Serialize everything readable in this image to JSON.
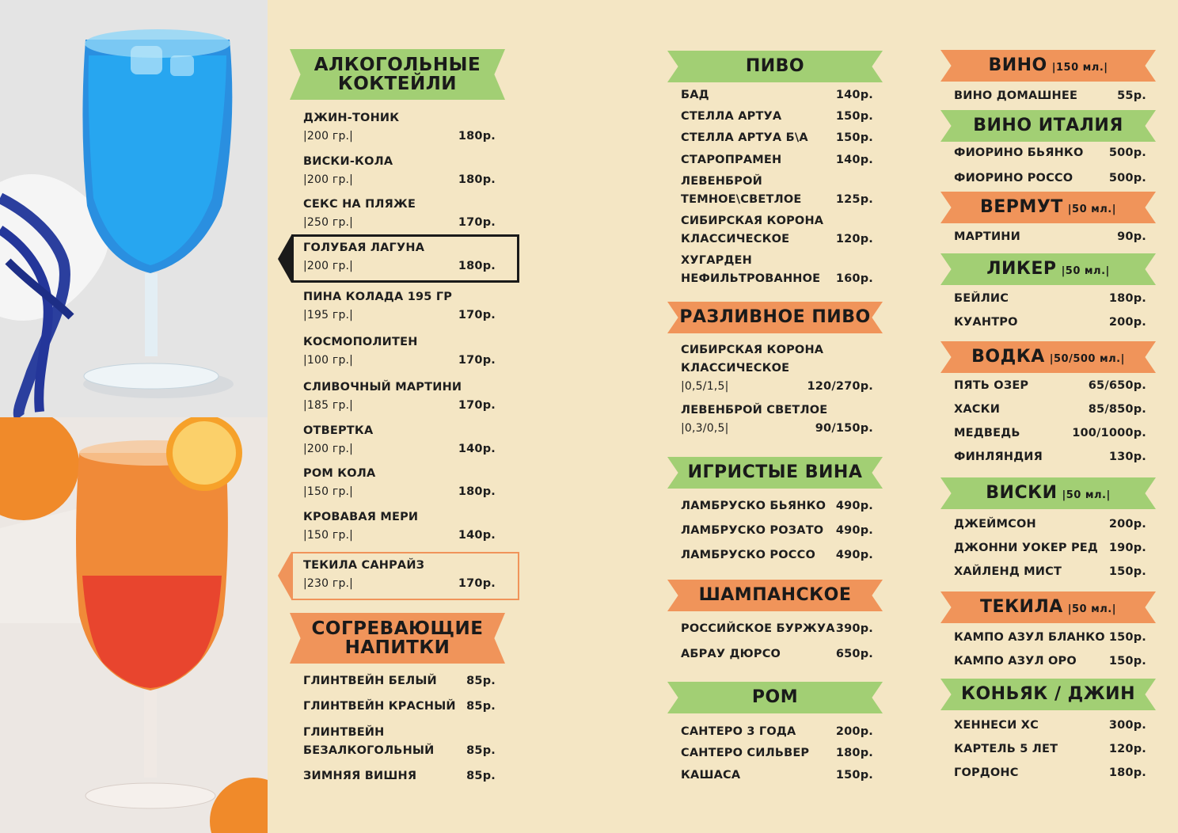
{
  "images": {
    "top": "blue-lagoon-cocktail-photo",
    "bottom": "tequila-sunrise-cocktail-photo"
  },
  "colors": {
    "background": "#f4e6c4",
    "green_banner": "#a2cf74",
    "orange_banner": "#f0945a",
    "highlight_dark": "#1a1a1a"
  },
  "col1": {
    "cocktails": {
      "title_line1": "АЛКОГОЛЬНЫЕ",
      "title_line2": "КОКТЕЙЛИ",
      "items": [
        {
          "name": "ДЖИН-ТОНИК",
          "volume": "|200 гр.|",
          "price": "180р."
        },
        {
          "name": "ВИСКИ-КОЛА",
          "volume": "|200 гр.|",
          "price": "180р."
        },
        {
          "name": "СЕКС НА ПЛЯЖЕ",
          "volume": "|250 гр.|",
          "price": "170р."
        },
        {
          "name": "ГОЛУБАЯ ЛАГУНА",
          "volume": "|200 гр.|",
          "price": "180р."
        },
        {
          "name": "ПИНА КОЛАДА 195 ГР",
          "volume": "|195 гр.|",
          "price": "170р."
        },
        {
          "name": "КОСМОПОЛИТЕН",
          "volume": "|100 гр.|",
          "price": "170р."
        },
        {
          "name": "СЛИВОЧНЫЙ МАРТИНИ",
          "volume": "|185 гр.|",
          "price": "170р."
        },
        {
          "name": "ОТВЕРТКА",
          "volume": "|200 гр.|",
          "price": "140р."
        },
        {
          "name": "РОМ КОЛА",
          "volume": "|150 гр.|",
          "price": "180р."
        },
        {
          "name": "КРОВАВАЯ МЕРИ",
          "volume": "|150 гр.|",
          "price": "140р."
        },
        {
          "name": "ТЕКИЛА САНРАЙЗ",
          "volume": "|230 гр.|",
          "price": "170р."
        }
      ]
    },
    "warm": {
      "title_line1": "СОГРЕВАЮЩИЕ",
      "title_line2": "НАПИТКИ",
      "items": [
        {
          "name": "ГЛИНТВЕЙН БЕЛЫЙ",
          "price": "85р."
        },
        {
          "name": "ГЛИНТВЕЙН КРАСНЫЙ",
          "price": "85р."
        },
        {
          "name": "ГЛИНТВЕЙН",
          "name2": "БЕЗАЛКОГОЛЬНЫЙ",
          "price": "85р."
        },
        {
          "name": "ЗИМНЯЯ ВИШНЯ",
          "price": "85р."
        }
      ]
    }
  },
  "col2": {
    "beer": {
      "title": "ПИВО",
      "items": [
        {
          "name": "БАД",
          "price": "140р."
        },
        {
          "name": "СТЕЛЛА АРТУА",
          "price": "150р."
        },
        {
          "name": "СТЕЛЛА АРТУА Б\\А",
          "price": "150р."
        },
        {
          "name": "СТАРОПРАМЕН",
          "price": "140р."
        },
        {
          "name": "ЛЕВЕНБРОЙ",
          "name2": "ТЕМНОЕ\\СВЕТЛОЕ",
          "price": "125р."
        },
        {
          "name": "СИБИРСКАЯ КОРОНА",
          "name2": "КЛАССИЧЕСКОЕ",
          "price": "120р."
        },
        {
          "name": "ХУГАРДЕН",
          "name2": "НЕФИЛЬТРОВАННОЕ",
          "price": "160р."
        }
      ]
    },
    "draft": {
      "title": "РАЗЛИВНОЕ ПИВО",
      "items": [
        {
          "name": "СИБИРСКАЯ КОРОНА",
          "name2": "КЛАССИЧЕСКОЕ",
          "volume": "|0,5/1,5|",
          "price": "120/270р."
        },
        {
          "name": "ЛЕВЕНБРОЙ СВЕТЛОЕ",
          "volume": "|0,3/0,5|",
          "price": "90/150р."
        }
      ]
    },
    "sparkling": {
      "title": "ИГРИСТЫЕ ВИНА",
      "items": [
        {
          "name": "ЛАМБРУСКО БЬЯНКО",
          "price": "490р."
        },
        {
          "name": "ЛАМБРУСКО РОЗАТО",
          "price": "490р."
        },
        {
          "name": "ЛАМБРУСКО РОССО",
          "price": "490р."
        }
      ]
    },
    "champagne": {
      "title": "ШАМПАНСКОЕ",
      "items": [
        {
          "name": "РОССИЙСКОЕ БУРЖУА",
          "price": "390р."
        },
        {
          "name": "АБРАУ ДЮРСО",
          "price": "650р."
        }
      ]
    },
    "rum": {
      "title": "РОМ",
      "items": [
        {
          "name": "САНТЕРО 3 ГОДА",
          "price": "200р."
        },
        {
          "name": "САНТЕРО СИЛЬВЕР",
          "price": "180р."
        },
        {
          "name": "КАШАСА",
          "price": "150р."
        }
      ]
    }
  },
  "col3": {
    "wine": {
      "title": "ВИНО",
      "unit": "|150 мл.|",
      "items": [
        {
          "name": "ВИНО ДОМАШНЕЕ",
          "price": "55р."
        }
      ]
    },
    "wine_italy": {
      "title": "ВИНО ИТАЛИЯ",
      "items": [
        {
          "name": "ФИОРИНО БЬЯНКО",
          "price": "500р."
        },
        {
          "name": "ФИОРИНО РОССО",
          "price": "500р."
        }
      ]
    },
    "vermouth": {
      "title": "ВЕРМУТ",
      "unit": "|50 мл.|",
      "items": [
        {
          "name": "МАРТИНИ",
          "price": "90р."
        }
      ]
    },
    "liqueur": {
      "title": "ЛИКЕР",
      "unit": "|50 мл.|",
      "items": [
        {
          "name": "БЕЙЛИС",
          "price": "180р."
        },
        {
          "name": "КУАНТРО",
          "price": "200р."
        }
      ]
    },
    "vodka": {
      "title": "ВОДКА",
      "unit": "|50/500 мл.|",
      "items": [
        {
          "name": "ПЯТЬ ОЗЕР",
          "price": "65/650р."
        },
        {
          "name": "ХАСКИ",
          "price": "85/850р."
        },
        {
          "name": "МЕДВЕДЬ",
          "price": "100/1000р."
        },
        {
          "name": "ФИНЛЯНДИЯ",
          "price": "130р."
        }
      ]
    },
    "whisky": {
      "title": "ВИСКИ",
      "unit": "|50 мл.|",
      "items": [
        {
          "name": "ДЖЕЙМСОН",
          "price": "200р."
        },
        {
          "name": "ДЖОННИ УОКЕР РЕД",
          "price": "190р."
        },
        {
          "name": "ХАЙЛЕНД МИСТ",
          "price": "150р."
        }
      ]
    },
    "tequila": {
      "title": "ТЕКИЛА",
      "unit": "|50 мл.|",
      "items": [
        {
          "name": "КАМПО АЗУЛ БЛАНКО",
          "price": "150р."
        },
        {
          "name": "КАМПО АЗУЛ ОРО",
          "price": "150р."
        }
      ]
    },
    "cognac": {
      "title": "КОНЬЯК / ДЖИН",
      "items": [
        {
          "name": "ХЕННЕСИ ХС",
          "price": "300р."
        },
        {
          "name": "КАРТЕЛЬ 5 ЛЕТ",
          "price": "120р."
        },
        {
          "name": "ГОРДОНС",
          "price": "180р."
        }
      ]
    }
  }
}
